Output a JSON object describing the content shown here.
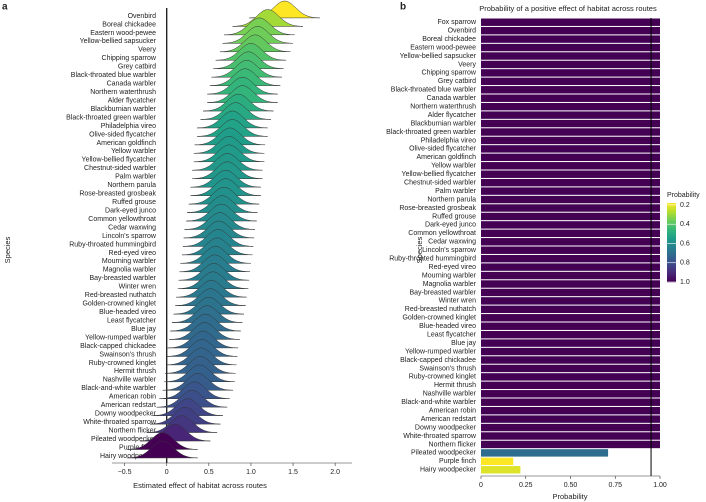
{
  "chart_data": [
    {
      "type": "ridgeline",
      "panel_label": "a",
      "xlabel": "Estimated effect of habitat across routes",
      "ylabel": "Species",
      "categories": [
        "Ovenbird",
        "Boreal chickadee",
        "Eastern wood-pewee",
        "Yellow-bellied sapsucker",
        "Veery",
        "Chipping sparrow",
        "Grey catbird",
        "Black-throated blue warbler",
        "Canada warbler",
        "Northern waterthrush",
        "Alder flycatcher",
        "Blackburnian warbler",
        "Black-throated green warbler",
        "Philadelphia vireo",
        "Olive-sided flycatcher",
        "American goldfinch",
        "Yellow warbler",
        "Yellow-bellied flycatcher",
        "Chestnut-sided warbler",
        "Palm warbler",
        "Northern parula",
        "Rose-breasted grosbeak",
        "Ruffed grouse",
        "Dark-eyed junco",
        "Common yellowthroat",
        "Cedar waxwing",
        "Lincoln's sparrow",
        "Ruby-throated hummingbird",
        "Red-eyed vireo",
        "Mourning warbler",
        "Magnolia warbler",
        "Bay-breasted warbler",
        "Winter wren",
        "Red-breasted nuthatch",
        "Golden-crowned kinglet",
        "Blue-headed vireo",
        "Least flycatcher",
        "Blue jay",
        "Yellow-rumped warbler",
        "Black-capped chickadee",
        "Swainson's thrush",
        "Ruby-crowned kinglet",
        "Hermit thrush",
        "Nashville warbler",
        "Black-and-white warbler",
        "American robin",
        "American redstart",
        "Downy woodpecker",
        "White-throated sparrow",
        "Northern flicker",
        "Pileated woodpecker",
        "Purple finch",
        "Hairy woodpecker"
      ],
      "values": [
        1.4,
        1.2,
        1.1,
        1.08,
        1.05,
        1.0,
        0.97,
        0.95,
        0.93,
        0.9,
        0.9,
        0.85,
        0.82,
        0.78,
        0.78,
        0.75,
        0.74,
        0.74,
        0.72,
        0.72,
        0.7,
        0.7,
        0.68,
        0.66,
        0.65,
        0.63,
        0.62,
        0.61,
        0.6,
        0.58,
        0.57,
        0.56,
        0.55,
        0.53,
        0.52,
        0.5,
        0.48,
        0.46,
        0.45,
        0.43,
        0.42,
        0.41,
        0.4,
        0.39,
        0.37,
        0.33,
        0.3,
        0.25,
        0.22,
        0.18,
        0.1,
        -0.05,
        -0.05
      ],
      "xlim": [
        -0.65,
        2.2
      ],
      "xticks": [
        {
          "value": -0.5,
          "label": "−0.5"
        },
        0,
        0.5,
        {
          "value": 1,
          "label": "1.0"
        },
        1.5,
        {
          "value": 2,
          "label": "2.0"
        }
      ],
      "vline": 0,
      "colormap": "viridis",
      "reverse": true
    },
    {
      "type": "bar",
      "panel_label": "b",
      "title": "Probability of a positive effect of habitat across routes",
      "xlabel": "Probability",
      "ylabel": "Species",
      "categories": [
        "Fox sparrow",
        "Ovenbird",
        "Boreal chickadee",
        "Eastern wood-pewee",
        "Yellow-bellied sapsucker",
        "Veery",
        "Chipping sparrow",
        "Grey catbird",
        "Black-throated blue warbler",
        "Canada warbler",
        "Northern waterthrush",
        "Alder flycatcher",
        "Blackburnian warbler",
        "Black-throated green warbler",
        "Philadelphia vireo",
        "Olive-sided flycatcher",
        "American goldfinch",
        "Yellow warbler",
        "Yellow-bellied flycatcher",
        "Chestnut-sided warbler",
        "Palm warbler",
        "Northern parula",
        "Rose-breasted grosbeak",
        "Ruffed grouse",
        "Dark-eyed junco",
        "Common yellowthroat",
        "Cedar waxwing",
        "Lincoln's sparrow",
        "Ruby-throated hummingbird",
        "Red-eyed vireo",
        "Mourning warbler",
        "Magnolia warbler",
        "Bay-breasted warbler",
        "Winter wren",
        "Red-breasted nuthatch",
        "Golden-crowned kinglet",
        "Blue-headed vireo",
        "Least flycatcher",
        "Blue jay",
        "Yellow-rumped warbler",
        "Black-capped chickadee",
        "Swainson's thrush",
        "Ruby-crowned kinglet",
        "Hermit thrush",
        "Nashville warbler",
        "Black-and-white warbler",
        "American robin",
        "American redstart",
        "Downy woodpecker",
        "White-throated sparrow",
        "Northern flicker",
        "Pileated woodpecker",
        "Purple finch",
        "Hairy woodpecker"
      ],
      "values": [
        1,
        1,
        1,
        1,
        1,
        1,
        1,
        1,
        1,
        1,
        1,
        1,
        1,
        1,
        1,
        1,
        1,
        1,
        1,
        1,
        1,
        1,
        1,
        1,
        1,
        1,
        1,
        1,
        1,
        1,
        1,
        1,
        1,
        1,
        1,
        1,
        1,
        1,
        1,
        1,
        1,
        1,
        1,
        1,
        1,
        1,
        1,
        1,
        1,
        1,
        1,
        0.71,
        0.18,
        0.22
      ],
      "xlim": [
        0,
        1
      ],
      "xticks": [
        0,
        0.25,
        {
          "value": 0.5,
          "label": "0.50"
        },
        0.75,
        {
          "value": 1,
          "label": "1.00"
        }
      ],
      "vline": 0.95,
      "colormap": "viridis",
      "reverse": true,
      "legend": {
        "title": "Probability",
        "clim": [
          0.18,
          1
        ],
        "ticks": [
          0.2,
          0.4,
          0.6,
          0.8,
          {
            "value": 1,
            "label": "1.0"
          }
        ]
      }
    }
  ]
}
